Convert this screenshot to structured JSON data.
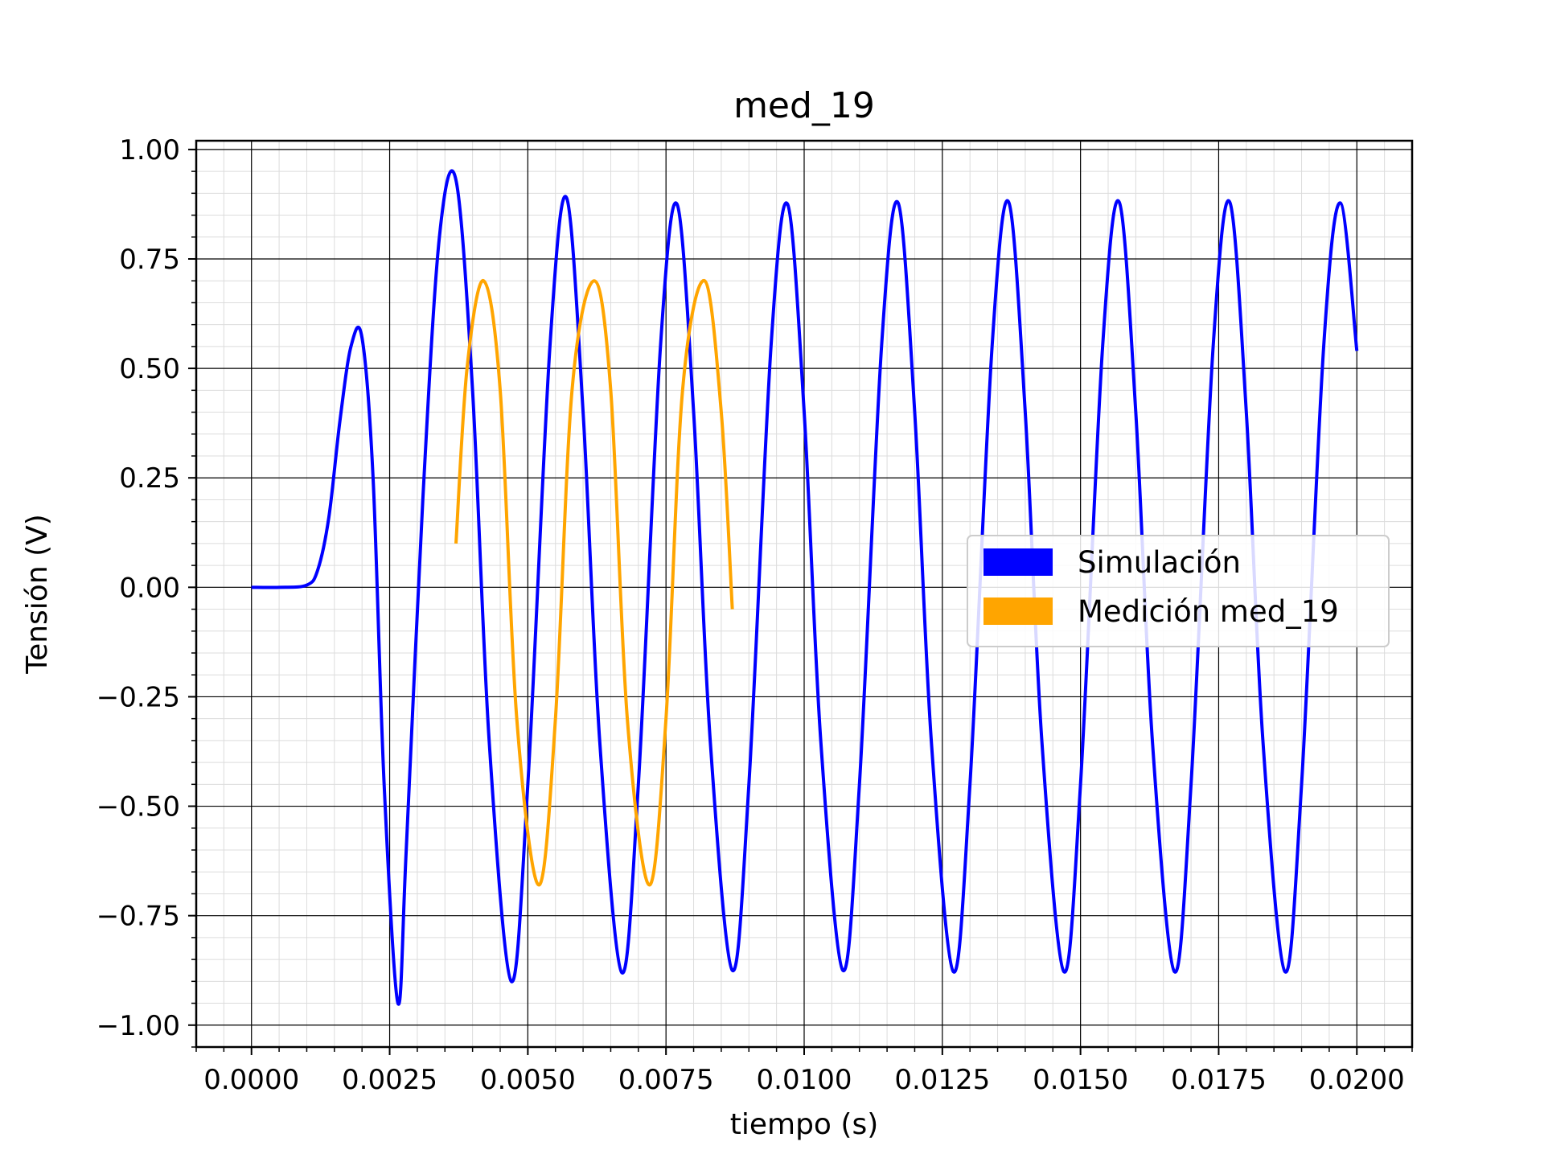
{
  "chart_data": {
    "type": "line",
    "title": "med_19",
    "xlabel": "tiempo (s)",
    "ylabel": "Tensión (V)",
    "xlim": [
      -0.001,
      0.021
    ],
    "ylim": [
      -1.05,
      1.02
    ],
    "xticks": [
      0.0,
      0.0025,
      0.005,
      0.0075,
      0.01,
      0.0125,
      0.015,
      0.0175,
      0.02
    ],
    "xtick_labels": [
      "0.0000",
      "0.0025",
      "0.0050",
      "0.0075",
      "0.0100",
      "0.0125",
      "0.0150",
      "0.0175",
      "0.0200"
    ],
    "yticks": [
      1.0,
      0.75,
      0.5,
      0.25,
      0.0,
      -0.25,
      -0.5,
      -0.75,
      -1.0
    ],
    "ytick_labels": [
      "1.00",
      "0.75",
      "0.50",
      "0.25",
      "0.00",
      "−0.25",
      "−0.50",
      "−0.75",
      "−1.00"
    ],
    "grid": true,
    "minor_grid": true,
    "legend_position": "center-right",
    "series": [
      {
        "name": "Simulación",
        "color": "#0000ff",
        "x": [
          0.0,
          0.0005,
          0.001,
          0.0012,
          0.0014,
          0.0016,
          0.0018,
          0.002,
          0.0022,
          0.0024,
          0.00265,
          0.0028,
          0.0031,
          0.0034,
          0.0037,
          0.004,
          0.0043,
          0.0047,
          0.005,
          0.0054,
          0.0057,
          0.006,
          0.0063,
          0.0067,
          0.007,
          0.0074,
          0.0077,
          0.008,
          0.0083,
          0.0087,
          0.009,
          0.0094,
          0.0097,
          0.01,
          0.0103,
          0.0107,
          0.011,
          0.0114,
          0.0117,
          0.012,
          0.0123,
          0.0127,
          0.013,
          0.0134,
          0.0137,
          0.014,
          0.0143,
          0.0147,
          0.015,
          0.0154,
          0.0157,
          0.016,
          0.0163,
          0.0167,
          0.017,
          0.0174,
          0.0177,
          0.018,
          0.0183,
          0.0187,
          0.019,
          0.0194,
          0.0197,
          0.02
        ],
        "y": [
          0.0,
          0.0,
          0.005,
          0.04,
          0.16,
          0.38,
          0.55,
          0.57,
          0.25,
          -0.45,
          -0.95,
          -0.6,
          0.2,
          0.8,
          0.93,
          0.45,
          -0.35,
          -0.9,
          -0.45,
          0.55,
          0.89,
          0.4,
          -0.35,
          -0.88,
          -0.45,
          0.55,
          0.875,
          0.4,
          -0.35,
          -0.875,
          -0.45,
          0.55,
          0.875,
          0.4,
          -0.35,
          -0.875,
          -0.45,
          0.55,
          0.878,
          0.4,
          -0.35,
          -0.878,
          -0.45,
          0.55,
          0.88,
          0.4,
          -0.35,
          -0.878,
          -0.45,
          0.55,
          0.88,
          0.4,
          -0.35,
          -0.878,
          -0.45,
          0.55,
          0.88,
          0.4,
          -0.35,
          -0.878,
          -0.45,
          0.55,
          0.878,
          0.54
        ]
      },
      {
        "name": "Medición med_19",
        "color": "#ffa500",
        "x": [
          0.0037,
          0.0039,
          0.0042,
          0.0045,
          0.0048,
          0.0052,
          0.0055,
          0.0058,
          0.0062,
          0.0065,
          0.0068,
          0.0072,
          0.0075,
          0.0078,
          0.0082,
          0.0085,
          0.0087
        ],
        "y": [
          0.1,
          0.5,
          0.7,
          0.45,
          -0.3,
          -0.68,
          -0.3,
          0.45,
          0.7,
          0.45,
          -0.3,
          -0.68,
          -0.3,
          0.45,
          0.7,
          0.4,
          -0.05
        ]
      }
    ]
  }
}
